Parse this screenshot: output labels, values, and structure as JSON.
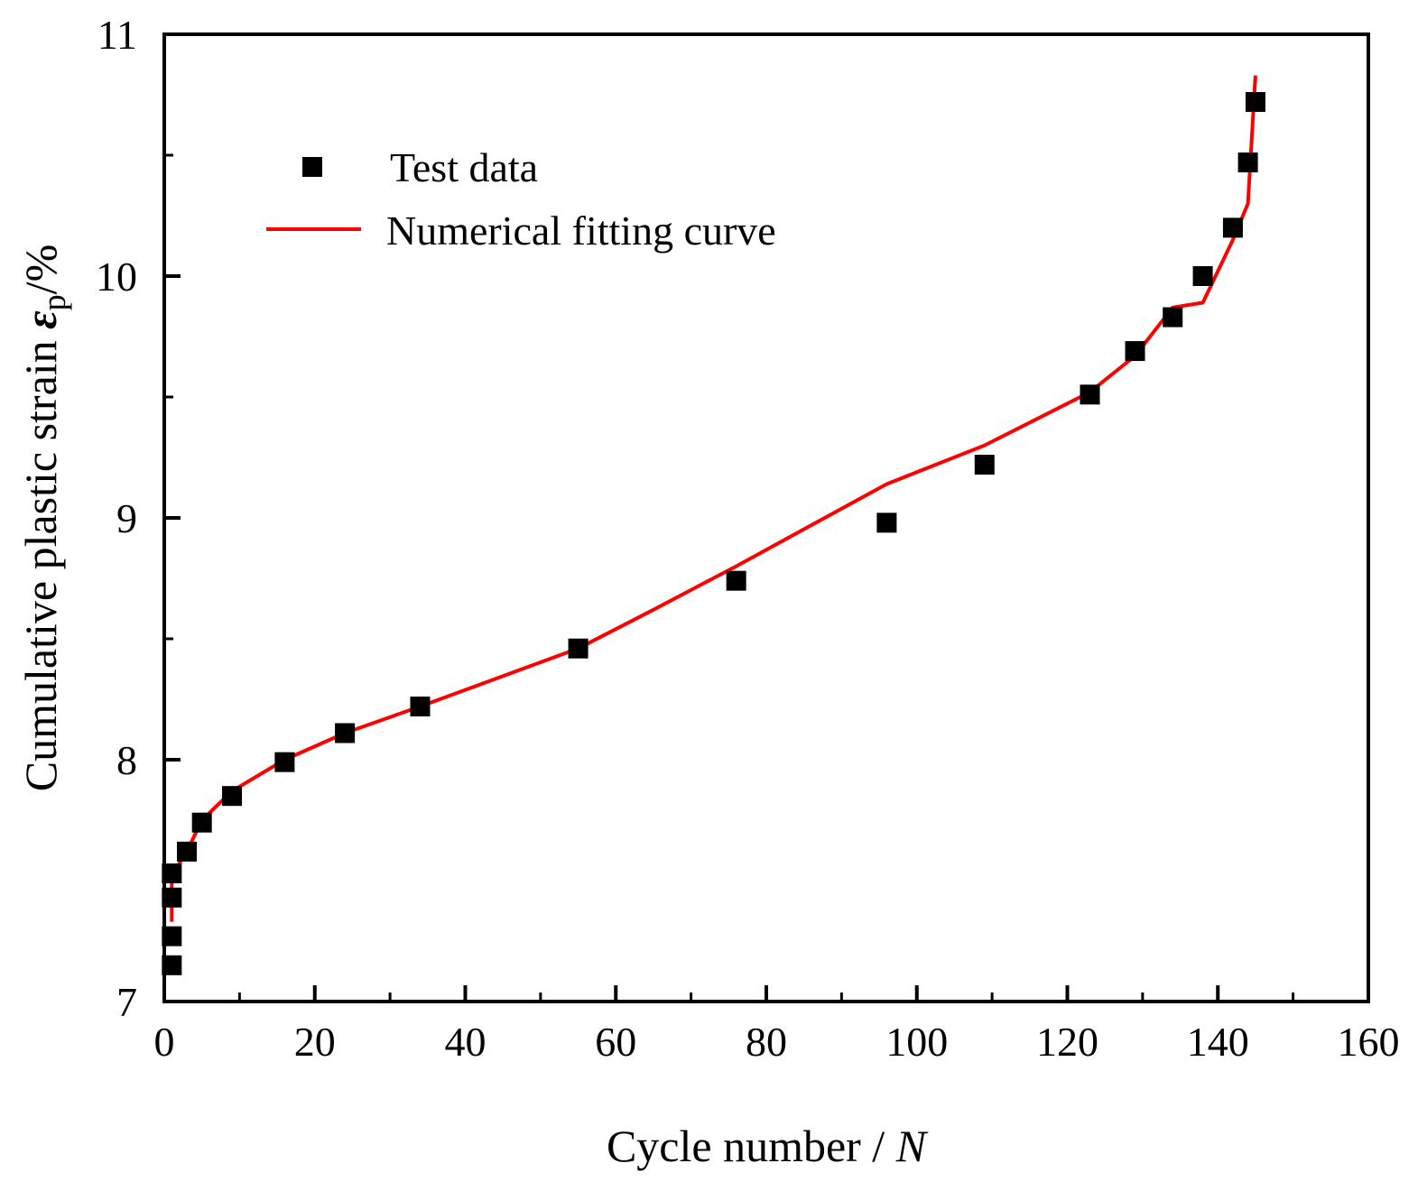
{
  "chart_data": {
    "type": "scatter",
    "title": "",
    "xlabel": "Cycle number / ",
    "xlabel_var": "N",
    "ylabel": "Cumulative plastic strain  ",
    "ylabel_symbol": "ε",
    "ylabel_subscript": "p",
    "ylabel_unit": "/%",
    "xlim": [
      0,
      160
    ],
    "ylim": [
      7,
      11
    ],
    "xticks": [
      0,
      20,
      40,
      60,
      80,
      100,
      120,
      140,
      160
    ],
    "xtick_labels": [
      "0",
      "20",
      "40",
      "60",
      "80",
      "100",
      "120",
      "140",
      "160"
    ],
    "yticks": [
      7,
      8,
      9,
      10,
      11
    ],
    "ytick_labels": [
      "7",
      "8",
      "9",
      "10",
      "11"
    ],
    "grid": false,
    "legend_position": "top-left",
    "series": [
      {
        "name": "Test data",
        "kind": "scatter",
        "marker": "square",
        "color": "#000000",
        "x": [
          1,
          1,
          1,
          1,
          3,
          5,
          9,
          16,
          24,
          34,
          55,
          76,
          96,
          109,
          123,
          129,
          134,
          138,
          142,
          144,
          145
        ],
        "y": [
          7.15,
          7.27,
          7.43,
          7.53,
          7.62,
          7.74,
          7.85,
          7.99,
          8.11,
          8.22,
          8.46,
          8.74,
          8.98,
          9.22,
          9.51,
          9.69,
          9.83,
          10.0,
          10.2,
          10.47,
          10.72
        ]
      },
      {
        "name": "Numerical fitting curve",
        "kind": "line",
        "color": "#ff0000",
        "x": [
          1,
          1,
          3,
          5,
          9,
          16,
          24,
          34,
          55,
          65,
          76,
          86,
          96,
          109,
          123,
          129,
          134,
          138,
          142,
          144,
          145
        ],
        "y": [
          7.33,
          7.52,
          7.62,
          7.75,
          7.87,
          8.0,
          8.11,
          8.22,
          8.46,
          8.62,
          8.8,
          8.97,
          9.14,
          9.3,
          9.52,
          9.67,
          9.87,
          9.89,
          10.15,
          10.3,
          10.83
        ]
      }
    ]
  }
}
